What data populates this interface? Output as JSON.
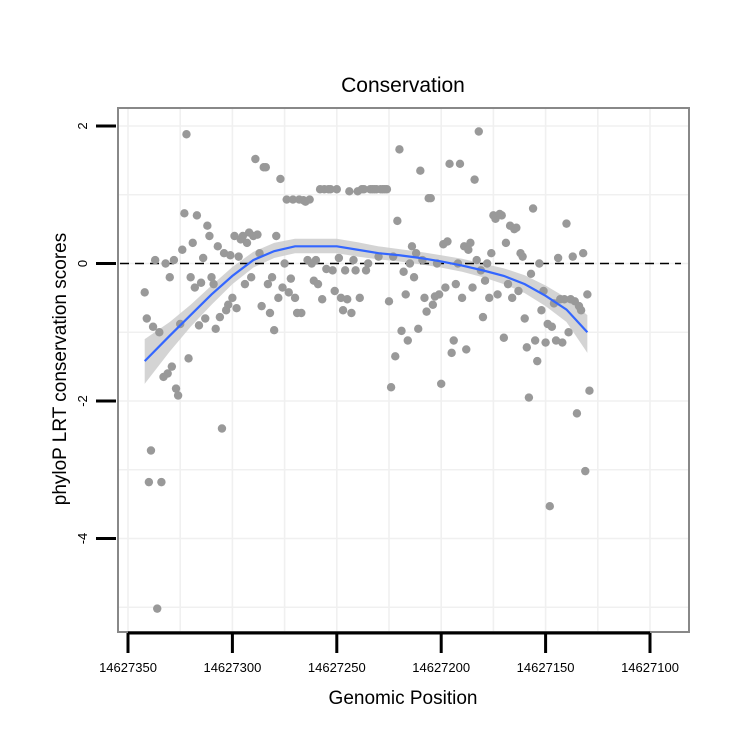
{
  "chart_data": {
    "type": "scatter",
    "title": "Conservation",
    "xlabel": "Genomic Position",
    "ylabel": "phyloP LRT conservation scores",
    "x_reversed": true,
    "xlim": [
      14627100,
      14627350
    ],
    "ylim": [
      -5.4,
      2.3
    ],
    "xticks": [
      14627350,
      14627300,
      14627250,
      14627200,
      14627150,
      14627100
    ],
    "xtick_labels": [
      "14627350",
      "14627300",
      "14627250",
      "14627200",
      "14627150",
      "14627100"
    ],
    "yticks": [
      2,
      0,
      -2,
      -4
    ],
    "ytick_labels": [
      "2",
      "0",
      "-2",
      "-4"
    ],
    "grid": true,
    "reference_line": {
      "y": 0,
      "style": "dashed"
    },
    "colors": {
      "points": "#999999",
      "smooth_line": "#3366ff",
      "confidence_band": "#cccccc",
      "panel_border": "#888888"
    },
    "series": [
      {
        "kind": "points",
        "points": [
          {
            "x": 14627342,
            "y": -0.42
          },
          {
            "x": 14627341,
            "y": -0.8
          },
          {
            "x": 14627340,
            "y": -3.18
          },
          {
            "x": 14627339,
            "y": -2.72
          },
          {
            "x": 14627338,
            "y": -0.92
          },
          {
            "x": 14627337,
            "y": 0.05
          },
          {
            "x": 14627336,
            "y": -5.02
          },
          {
            "x": 14627335,
            "y": -1.0
          },
          {
            "x": 14627334,
            "y": -3.18
          },
          {
            "x": 14627333,
            "y": -1.65
          },
          {
            "x": 14627332,
            "y": 0.0
          },
          {
            "x": 14627331,
            "y": -1.6
          },
          {
            "x": 14627330,
            "y": -0.2
          },
          {
            "x": 14627329,
            "y": -1.5
          },
          {
            "x": 14627328,
            "y": 0.05
          },
          {
            "x": 14627327,
            "y": -1.82
          },
          {
            "x": 14627326,
            "y": -1.92
          },
          {
            "x": 14627325,
            "y": -0.88
          },
          {
            "x": 14627324,
            "y": 0.2
          },
          {
            "x": 14627323,
            "y": 0.73
          },
          {
            "x": 14627322,
            "y": 1.88
          },
          {
            "x": 14627321,
            "y": -1.38
          },
          {
            "x": 14627320,
            "y": -0.2
          },
          {
            "x": 14627319,
            "y": 0.3
          },
          {
            "x": 14627318,
            "y": -0.35
          },
          {
            "x": 14627317,
            "y": 0.7
          },
          {
            "x": 14627316,
            "y": -0.9
          },
          {
            "x": 14627315,
            "y": -0.28
          },
          {
            "x": 14627314,
            "y": 0.08
          },
          {
            "x": 14627313,
            "y": -0.8
          },
          {
            "x": 14627312,
            "y": 0.55
          },
          {
            "x": 14627311,
            "y": 0.4
          },
          {
            "x": 14627310,
            "y": -0.2
          },
          {
            "x": 14627309,
            "y": -0.3
          },
          {
            "x": 14627308,
            "y": -0.95
          },
          {
            "x": 14627307,
            "y": 0.25
          },
          {
            "x": 14627306,
            "y": -0.78
          },
          {
            "x": 14627305,
            "y": -2.4
          },
          {
            "x": 14627304,
            "y": 0.15
          },
          {
            "x": 14627303,
            "y": -0.68
          },
          {
            "x": 14627302,
            "y": -0.6
          },
          {
            "x": 14627301,
            "y": 0.12
          },
          {
            "x": 14627300,
            "y": -0.5
          },
          {
            "x": 14627299,
            "y": 0.4
          },
          {
            "x": 14627298,
            "y": -0.65
          },
          {
            "x": 14627297,
            "y": 0.1
          },
          {
            "x": 14627296,
            "y": 0.35
          },
          {
            "x": 14627295,
            "y": 0.4
          },
          {
            "x": 14627294,
            "y": -0.3
          },
          {
            "x": 14627293,
            "y": 0.3
          },
          {
            "x": 14627292,
            "y": 0.45
          },
          {
            "x": 14627291,
            "y": -0.2
          },
          {
            "x": 14627290,
            "y": 0.4
          },
          {
            "x": 14627289,
            "y": 1.52
          },
          {
            "x": 14627288,
            "y": 0.42
          },
          {
            "x": 14627287,
            "y": 0.15
          },
          {
            "x": 14627286,
            "y": -0.62
          },
          {
            "x": 14627285,
            "y": 1.4
          },
          {
            "x": 14627284,
            "y": 1.4
          },
          {
            "x": 14627283,
            "y": -0.3
          },
          {
            "x": 14627282,
            "y": -0.72
          },
          {
            "x": 14627281,
            "y": -0.2
          },
          {
            "x": 14627280,
            "y": -0.97
          },
          {
            "x": 14627279,
            "y": 0.4
          },
          {
            "x": 14627278,
            "y": -0.5
          },
          {
            "x": 14627277,
            "y": 1.23
          },
          {
            "x": 14627276,
            "y": -0.35
          },
          {
            "x": 14627275,
            "y": 0.0
          },
          {
            "x": 14627274,
            "y": 0.93
          },
          {
            "x": 14627273,
            "y": -0.42
          },
          {
            "x": 14627272,
            "y": -0.22
          },
          {
            "x": 14627271,
            "y": 0.93
          },
          {
            "x": 14627270,
            "y": -0.5
          },
          {
            "x": 14627269,
            "y": -0.72
          },
          {
            "x": 14627268,
            "y": 0.93
          },
          {
            "x": 14627267,
            "y": -0.72
          },
          {
            "x": 14627266,
            "y": 0.92
          },
          {
            "x": 14627265,
            "y": 0.9
          },
          {
            "x": 14627264,
            "y": 0.05
          },
          {
            "x": 14627263,
            "y": 0.93
          },
          {
            "x": 14627262,
            "y": 0.0
          },
          {
            "x": 14627261,
            "y": -0.25
          },
          {
            "x": 14627260,
            "y": 0.05
          },
          {
            "x": 14627259,
            "y": -0.3
          },
          {
            "x": 14627258,
            "y": 1.08
          },
          {
            "x": 14627257,
            "y": -0.52
          },
          {
            "x": 14627256,
            "y": 1.08
          },
          {
            "x": 14627255,
            "y": -0.08
          },
          {
            "x": 14627254,
            "y": 1.08
          },
          {
            "x": 14627253,
            "y": 1.08
          },
          {
            "x": 14627252,
            "y": -0.1
          },
          {
            "x": 14627251,
            "y": -0.4
          },
          {
            "x": 14627250,
            "y": 1.08
          },
          {
            "x": 14627249,
            "y": 0.08
          },
          {
            "x": 14627248,
            "y": -0.5
          },
          {
            "x": 14627247,
            "y": -0.68
          },
          {
            "x": 14627246,
            "y": -0.1
          },
          {
            "x": 14627245,
            "y": -0.52
          },
          {
            "x": 14627244,
            "y": 1.05
          },
          {
            "x": 14627243,
            "y": -0.72
          },
          {
            "x": 14627242,
            "y": 0.05
          },
          {
            "x": 14627241,
            "y": -0.1
          },
          {
            "x": 14627240,
            "y": 1.05
          },
          {
            "x": 14627239,
            "y": -0.5
          },
          {
            "x": 14627238,
            "y": 1.08
          },
          {
            "x": 14627237,
            "y": 1.08
          },
          {
            "x": 14627236,
            "y": -0.1
          },
          {
            "x": 14627235,
            "y": 0.0
          },
          {
            "x": 14627234,
            "y": 1.08
          },
          {
            "x": 14627233,
            "y": 1.08
          },
          {
            "x": 14627232,
            "y": 1.08
          },
          {
            "x": 14627231,
            "y": 1.08
          },
          {
            "x": 14627230,
            "y": 0.1
          },
          {
            "x": 14627229,
            "y": 1.08
          },
          {
            "x": 14627228,
            "y": 1.08
          },
          {
            "x": 14627227,
            "y": 1.08
          },
          {
            "x": 14627226,
            "y": 1.08
          },
          {
            "x": 14627225,
            "y": -0.55
          },
          {
            "x": 14627224,
            "y": -1.8
          },
          {
            "x": 14627223,
            "y": 0.1
          },
          {
            "x": 14627222,
            "y": -1.35
          },
          {
            "x": 14627221,
            "y": 0.62
          },
          {
            "x": 14627220,
            "y": 1.66
          },
          {
            "x": 14627219,
            "y": -0.98
          },
          {
            "x": 14627218,
            "y": -0.12
          },
          {
            "x": 14627217,
            "y": -0.45
          },
          {
            "x": 14627216,
            "y": -1.12
          },
          {
            "x": 14627215,
            "y": 0.0
          },
          {
            "x": 14627214,
            "y": 0.25
          },
          {
            "x": 14627213,
            "y": -0.2
          },
          {
            "x": 14627212,
            "y": 0.15
          },
          {
            "x": 14627211,
            "y": -0.95
          },
          {
            "x": 14627210,
            "y": 1.35
          },
          {
            "x": 14627209,
            "y": 0.05
          },
          {
            "x": 14627208,
            "y": -0.5
          },
          {
            "x": 14627207,
            "y": -0.7
          },
          {
            "x": 14627206,
            "y": 0.95
          },
          {
            "x": 14627205,
            "y": 0.95
          },
          {
            "x": 14627204,
            "y": -0.6
          },
          {
            "x": 14627203,
            "y": -0.48
          },
          {
            "x": 14627202,
            "y": 0.0
          },
          {
            "x": 14627201,
            "y": -0.45
          },
          {
            "x": 14627200,
            "y": -1.75
          },
          {
            "x": 14627199,
            "y": 0.28
          },
          {
            "x": 14627198,
            "y": -0.35
          },
          {
            "x": 14627197,
            "y": 0.32
          },
          {
            "x": 14627196,
            "y": 1.45
          },
          {
            "x": 14627195,
            "y": -1.3
          },
          {
            "x": 14627194,
            "y": -1.12
          },
          {
            "x": 14627193,
            "y": -0.3
          },
          {
            "x": 14627192,
            "y": 0.0
          },
          {
            "x": 14627191,
            "y": 1.45
          },
          {
            "x": 14627190,
            "y": -0.5
          },
          {
            "x": 14627189,
            "y": 0.25
          },
          {
            "x": 14627188,
            "y": -1.25
          },
          {
            "x": 14627187,
            "y": 0.2
          },
          {
            "x": 14627186,
            "y": 0.3
          },
          {
            "x": 14627185,
            "y": -0.35
          },
          {
            "x": 14627184,
            "y": 1.22
          },
          {
            "x": 14627183,
            "y": 0.05
          },
          {
            "x": 14627182,
            "y": 1.92
          },
          {
            "x": 14627181,
            "y": -0.1
          },
          {
            "x": 14627180,
            "y": -0.78
          },
          {
            "x": 14627179,
            "y": -0.25
          },
          {
            "x": 14627178,
            "y": 0.0
          },
          {
            "x": 14627177,
            "y": -0.5
          },
          {
            "x": 14627176,
            "y": 0.15
          },
          {
            "x": 14627175,
            "y": 0.7
          },
          {
            "x": 14627174,
            "y": 0.65
          },
          {
            "x": 14627173,
            "y": -0.45
          },
          {
            "x": 14627172,
            "y": 0.72
          },
          {
            "x": 14627171,
            "y": 0.7
          },
          {
            "x": 14627170,
            "y": -1.08
          },
          {
            "x": 14627169,
            "y": 0.3
          },
          {
            "x": 14627168,
            "y": -0.3
          },
          {
            "x": 14627167,
            "y": 0.55
          },
          {
            "x": 14627166,
            "y": -0.5
          },
          {
            "x": 14627165,
            "y": 0.5
          },
          {
            "x": 14627164,
            "y": 0.52
          },
          {
            "x": 14627163,
            "y": -0.4
          },
          {
            "x": 14627162,
            "y": 0.15
          },
          {
            "x": 14627161,
            "y": 0.1
          },
          {
            "x": 14627160,
            "y": -0.8
          },
          {
            "x": 14627159,
            "y": -1.22
          },
          {
            "x": 14627158,
            "y": -1.95
          },
          {
            "x": 14627157,
            "y": -0.15
          },
          {
            "x": 14627156,
            "y": 0.8
          },
          {
            "x": 14627155,
            "y": -1.12
          },
          {
            "x": 14627154,
            "y": -1.42
          },
          {
            "x": 14627153,
            "y": 0.0
          },
          {
            "x": 14627152,
            "y": -0.68
          },
          {
            "x": 14627151,
            "y": -0.4
          },
          {
            "x": 14627150,
            "y": -1.15
          },
          {
            "x": 14627149,
            "y": -0.88
          },
          {
            "x": 14627148,
            "y": -3.53
          },
          {
            "x": 14627147,
            "y": -0.92
          },
          {
            "x": 14627146,
            "y": -0.58
          },
          {
            "x": 14627145,
            "y": -1.12
          },
          {
            "x": 14627144,
            "y": 0.08
          },
          {
            "x": 14627143,
            "y": -0.52
          },
          {
            "x": 14627142,
            "y": -1.15
          },
          {
            "x": 14627141,
            "y": -0.52
          },
          {
            "x": 14627140,
            "y": 0.58
          },
          {
            "x": 14627139,
            "y": -1.0
          },
          {
            "x": 14627138,
            "y": -0.52
          },
          {
            "x": 14627137,
            "y": 0.1
          },
          {
            "x": 14627136,
            "y": -0.55
          },
          {
            "x": 14627135,
            "y": -2.18
          },
          {
            "x": 14627134,
            "y": -0.62
          },
          {
            "x": 14627133,
            "y": -0.68
          },
          {
            "x": 14627132,
            "y": 0.15
          },
          {
            "x": 14627131,
            "y": -3.02
          },
          {
            "x": 14627130,
            "y": -0.45
          },
          {
            "x": 14627129,
            "y": -1.85
          }
        ]
      },
      {
        "kind": "smooth",
        "name": "",
        "points": [
          {
            "x": 14627342,
            "y": -1.42,
            "lower": -1.75,
            "upper": -1.1
          },
          {
            "x": 14627330,
            "y": -1.05,
            "lower": -1.28,
            "upper": -0.85
          },
          {
            "x": 14627320,
            "y": -0.75,
            "lower": -0.92,
            "upper": -0.6
          },
          {
            "x": 14627310,
            "y": -0.45,
            "lower": -0.6,
            "upper": -0.32
          },
          {
            "x": 14627300,
            "y": -0.18,
            "lower": -0.3,
            "upper": -0.05
          },
          {
            "x": 14627290,
            "y": 0.05,
            "lower": -0.06,
            "upper": 0.17
          },
          {
            "x": 14627280,
            "y": 0.18,
            "lower": 0.08,
            "upper": 0.3
          },
          {
            "x": 14627270,
            "y": 0.25,
            "lower": 0.15,
            "upper": 0.36
          },
          {
            "x": 14627260,
            "y": 0.25,
            "lower": 0.15,
            "upper": 0.36
          },
          {
            "x": 14627250,
            "y": 0.25,
            "lower": 0.15,
            "upper": 0.36
          },
          {
            "x": 14627240,
            "y": 0.2,
            "lower": 0.1,
            "upper": 0.31
          },
          {
            "x": 14627230,
            "y": 0.15,
            "lower": 0.06,
            "upper": 0.25
          },
          {
            "x": 14627220,
            "y": 0.12,
            "lower": 0.03,
            "upper": 0.21
          },
          {
            "x": 14627210,
            "y": 0.08,
            "lower": -0.01,
            "upper": 0.17
          },
          {
            "x": 14627200,
            "y": 0.03,
            "lower": -0.06,
            "upper": 0.12
          },
          {
            "x": 14627190,
            "y": -0.03,
            "lower": -0.12,
            "upper": 0.07
          },
          {
            "x": 14627180,
            "y": -0.1,
            "lower": -0.2,
            "upper": 0.0
          },
          {
            "x": 14627170,
            "y": -0.18,
            "lower": -0.3,
            "upper": -0.07
          },
          {
            "x": 14627160,
            "y": -0.3,
            "lower": -0.43,
            "upper": -0.17
          },
          {
            "x": 14627150,
            "y": -0.47,
            "lower": -0.62,
            "upper": -0.32
          },
          {
            "x": 14627140,
            "y": -0.67,
            "lower": -0.85,
            "upper": -0.5
          },
          {
            "x": 14627130,
            "y": -1.0,
            "lower": -1.3,
            "upper": -0.75
          }
        ]
      }
    ]
  }
}
